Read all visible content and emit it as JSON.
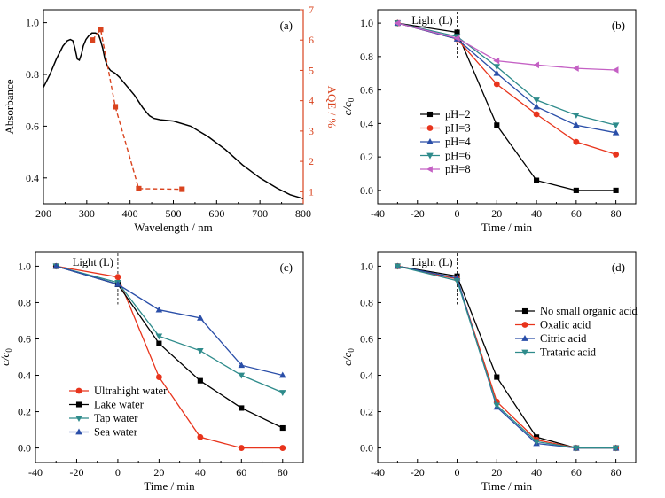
{
  "colors": {
    "black": "#000000",
    "red": "#e8341c",
    "blue": "#2a4ea8",
    "teal": "#2e8b8b",
    "purple": "#c460c4",
    "orange": "#d9431e"
  },
  "chart_data": [
    {
      "id": "a",
      "panel_label": "(a)",
      "type": "line",
      "xlabel": "Wavelength / nm",
      "ylabel": "Absorbance",
      "y2label": "AQE / %",
      "xlim": [
        200,
        800
      ],
      "ylim": [
        0.3,
        1.05
      ],
      "y2lim": [
        0.6,
        7
      ],
      "x_ticks": [
        200,
        300,
        400,
        500,
        600,
        700,
        800
      ],
      "y_ticks": [
        0.4,
        0.6,
        0.8,
        1.0
      ],
      "y_tick_labels": [
        "0.4",
        "0.6",
        "0.8",
        "1.0"
      ],
      "y2_ticks": [
        1,
        2,
        3,
        4,
        5,
        6,
        7
      ],
      "series": [
        {
          "axis": "left",
          "style": "solid",
          "color": "black",
          "x": [
            200,
            215,
            230,
            245,
            255,
            262,
            268,
            273,
            278,
            283,
            288,
            292,
            298,
            305,
            312,
            320,
            327,
            332,
            337,
            342,
            348,
            355,
            365,
            375,
            390,
            410,
            430,
            445,
            455,
            470,
            500,
            540,
            580,
            620,
            660,
            700,
            740,
            770,
            800
          ],
          "y": [
            0.75,
            0.8,
            0.86,
            0.91,
            0.93,
            0.935,
            0.93,
            0.9,
            0.86,
            0.855,
            0.88,
            0.91,
            0.935,
            0.95,
            0.96,
            0.96,
            0.955,
            0.93,
            0.9,
            0.86,
            0.83,
            0.815,
            0.805,
            0.79,
            0.76,
            0.72,
            0.67,
            0.64,
            0.63,
            0.625,
            0.62,
            0.6,
            0.56,
            0.51,
            0.45,
            0.4,
            0.36,
            0.335,
            0.32
          ]
        },
        {
          "axis": "right",
          "style": "dashed",
          "color": "orange",
          "marker": "square",
          "x": [
            313,
            332,
            366,
            420,
            520
          ],
          "y": [
            6.0,
            6.35,
            3.8,
            1.1,
            1.08
          ]
        }
      ]
    },
    {
      "id": "b",
      "panel_label": "(b)",
      "type": "line",
      "xlabel": "Time / min",
      "ylabel": "c/c0",
      "xlim": [
        -40,
        90
      ],
      "ylim": [
        -0.08,
        1.08
      ],
      "x_ticks": [
        -40,
        -20,
        0,
        20,
        40,
        60,
        80
      ],
      "y_ticks": [
        0.0,
        0.2,
        0.4,
        0.6,
        0.8,
        1.0
      ],
      "y_tick_labels": [
        "0.0",
        "0.2",
        "0.4",
        "0.6",
        "0.8",
        "1.0"
      ],
      "light_label": "Light (L)",
      "legend_position": "left-bottom",
      "x": [
        -30,
        0,
        20,
        40,
        60,
        80
      ],
      "series": [
        {
          "name": "pH=2",
          "color": "black",
          "marker": "square",
          "values": [
            1.0,
            0.945,
            0.39,
            0.06,
            0.0,
            0.0
          ]
        },
        {
          "name": "pH=3",
          "color": "red",
          "marker": "circle",
          "values": [
            1.0,
            0.905,
            0.635,
            0.455,
            0.29,
            0.215
          ]
        },
        {
          "name": "pH=4",
          "color": "blue",
          "marker": "triangle-up",
          "values": [
            1.0,
            0.905,
            0.7,
            0.5,
            0.39,
            0.345
          ]
        },
        {
          "name": "pH=6",
          "color": "teal",
          "marker": "triangle-down",
          "values": [
            1.0,
            0.92,
            0.74,
            0.54,
            0.45,
            0.39
          ]
        },
        {
          "name": "pH=8",
          "color": "purple",
          "marker": "triangle-left",
          "values": [
            1.0,
            0.91,
            0.775,
            0.75,
            0.73,
            0.72
          ]
        }
      ]
    },
    {
      "id": "c",
      "panel_label": "(c)",
      "type": "line",
      "xlabel": "Time / min",
      "ylabel": "c/c0",
      "xlim": [
        -40,
        90
      ],
      "ylim": [
        -0.08,
        1.08
      ],
      "x_ticks": [
        -40,
        -20,
        0,
        20,
        40,
        60,
        80
      ],
      "y_ticks": [
        0.0,
        0.2,
        0.4,
        0.6,
        0.8,
        1.0
      ],
      "y_tick_labels": [
        "0.0",
        "0.2",
        "0.4",
        "0.6",
        "0.8",
        "1.0"
      ],
      "light_label": "Light (L)",
      "legend_position": "left-bottom",
      "x": [
        -30,
        0,
        20,
        40,
        60,
        80
      ],
      "series": [
        {
          "name": "Ultrahight water",
          "color": "red",
          "marker": "circle",
          "values": [
            1.0,
            0.94,
            0.39,
            0.06,
            0.0,
            0.0
          ]
        },
        {
          "name": "Lake water",
          "color": "black",
          "marker": "square",
          "values": [
            1.0,
            0.9,
            0.575,
            0.37,
            0.22,
            0.11
          ]
        },
        {
          "name": "Tap water",
          "color": "teal",
          "marker": "triangle-down",
          "values": [
            1.0,
            0.91,
            0.615,
            0.535,
            0.4,
            0.305
          ]
        },
        {
          "name": "Sea water",
          "color": "blue",
          "marker": "triangle-up",
          "values": [
            1.0,
            0.9,
            0.76,
            0.715,
            0.455,
            0.4
          ]
        }
      ]
    },
    {
      "id": "d",
      "panel_label": "(d)",
      "type": "line",
      "xlabel": "Time / min",
      "ylabel": "c/c0",
      "xlim": [
        -40,
        90
      ],
      "ylim": [
        -0.08,
        1.08
      ],
      "x_ticks": [
        -40,
        -20,
        0,
        20,
        40,
        60,
        80
      ],
      "y_ticks": [
        0.0,
        0.2,
        0.4,
        0.6,
        0.8,
        1.0
      ],
      "y_tick_labels": [
        "0.0",
        "0.2",
        "0.4",
        "0.6",
        "0.8",
        "1.0"
      ],
      "light_label": "Light (L)",
      "legend_position": "right-middle",
      "x": [
        -30,
        0,
        20,
        40,
        60,
        80
      ],
      "series": [
        {
          "name": "No small organic acid",
          "color": "black",
          "marker": "square",
          "values": [
            1.0,
            0.945,
            0.39,
            0.06,
            0.0,
            0.0
          ]
        },
        {
          "name": "Oxalic acid",
          "color": "red",
          "marker": "circle",
          "values": [
            1.0,
            0.93,
            0.255,
            0.045,
            0.0,
            0.0
          ]
        },
        {
          "name": "Citric acid",
          "color": "blue",
          "marker": "triangle-up",
          "values": [
            1.0,
            0.935,
            0.225,
            0.025,
            0.0,
            0.0
          ]
        },
        {
          "name": "Trataric acid",
          "color": "teal",
          "marker": "triangle-down",
          "values": [
            1.0,
            0.92,
            0.235,
            0.035,
            0.0,
            0.0
          ]
        }
      ]
    }
  ]
}
